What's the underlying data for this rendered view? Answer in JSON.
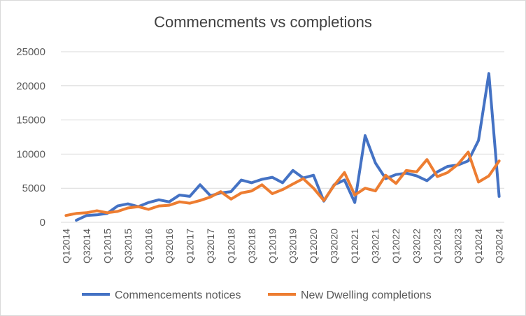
{
  "chart_data": {
    "type": "line",
    "title": "Commencments vs completions",
    "xlabel": "",
    "ylabel": "",
    "ylim": [
      0,
      25000
    ],
    "yticks": [
      0,
      5000,
      10000,
      15000,
      20000,
      25000
    ],
    "grid": "horizontal",
    "legend_position": "bottom",
    "x": [
      "Q12014",
      "Q22014",
      "Q32014",
      "Q42014",
      "Q12015",
      "Q22015",
      "Q32015",
      "Q42015",
      "Q12016",
      "Q22016",
      "Q32016",
      "Q42016",
      "Q12017",
      "Q22017",
      "Q32017",
      "Q42017",
      "Q12018",
      "Q22018",
      "Q32018",
      "Q42018",
      "Q12019",
      "Q22019",
      "Q32019",
      "Q42019",
      "Q12020",
      "Q22020",
      "Q32020",
      "Q42020",
      "Q12021",
      "Q22021",
      "Q32021",
      "Q42021",
      "Q12022",
      "Q22022",
      "Q32022",
      "Q42022",
      "Q12023",
      "Q22023",
      "Q32023",
      "Q42023",
      "Q12024",
      "Q22024",
      "Q32024"
    ],
    "x_tick_labels": [
      "Q12014",
      "Q32014",
      "Q12015",
      "Q32015",
      "Q12016",
      "Q32016",
      "Q12017",
      "Q32017",
      "Q12018",
      "Q32018",
      "Q12019",
      "Q32019",
      "Q12020",
      "Q32020",
      "Q12021",
      "Q32021",
      "Q12022",
      "Q32022",
      "Q12023",
      "Q32023",
      "Q12024",
      "Q32024"
    ],
    "series": [
      {
        "name": "Commencements notices",
        "color": "#4472c4",
        "values": [
          null,
          300,
          1000,
          1100,
          1300,
          2400,
          2700,
          2300,
          2900,
          3300,
          3000,
          4000,
          3800,
          5500,
          3900,
          4300,
          4500,
          6200,
          5800,
          6300,
          6600,
          5800,
          7600,
          6500,
          6900,
          3100,
          5500,
          6200,
          2900,
          12700,
          8700,
          6400,
          7000,
          7200,
          6800,
          6100,
          7400,
          8200,
          8400,
          9000,
          12000,
          21800,
          3800
        ]
      },
      {
        "name": "New Dwelling completions",
        "color": "#ed7d31",
        "values": [
          1000,
          1300,
          1400,
          1700,
          1400,
          1600,
          2100,
          2300,
          1900,
          2400,
          2500,
          3000,
          2800,
          3200,
          3700,
          4500,
          3400,
          4300,
          4600,
          5500,
          4200,
          4800,
          5600,
          6400,
          5000,
          3200,
          5400,
          7300,
          4000,
          5000,
          4600,
          6900,
          5700,
          7600,
          7400,
          9200,
          6700,
          7300,
          8500,
          10300,
          5900,
          6800,
          9000
        ]
      }
    ]
  }
}
